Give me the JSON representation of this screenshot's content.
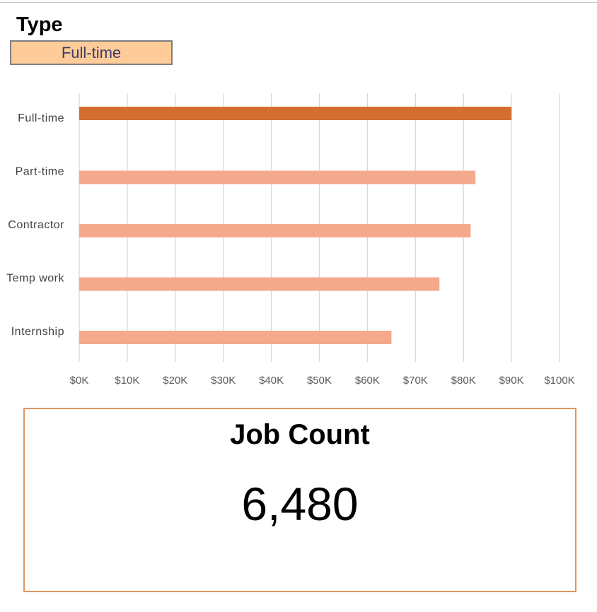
{
  "slicer": {
    "title": "Type",
    "selected": "Full-time",
    "button_fill": "#ffcc99",
    "button_text_color": "#3b3b6b"
  },
  "kpi": {
    "title": "Job Count",
    "value": "6,480",
    "border_color": "#e0955c"
  },
  "chart_data": {
    "type": "bar",
    "orientation": "horizontal",
    "title": "",
    "xlabel": "",
    "ylabel": "",
    "categories": [
      "Full-time",
      "Part-time",
      "Contractor",
      "Temp work",
      "Internship"
    ],
    "values": [
      90000,
      82500,
      81500,
      75000,
      65000
    ],
    "highlighted": "Full-time",
    "highlight_color": "#d46d30",
    "bar_color": "#f4a98c",
    "xlim": [
      0,
      100000
    ],
    "x_ticks": [
      0,
      10000,
      20000,
      30000,
      40000,
      50000,
      60000,
      70000,
      80000,
      90000,
      100000
    ],
    "x_tick_labels": [
      "$0K",
      "$10K",
      "$20K",
      "$30K",
      "$40K",
      "$50K",
      "$60K",
      "$70K",
      "$80K",
      "$90K",
      "$100K"
    ],
    "grid": "vertical",
    "legend": "none"
  }
}
